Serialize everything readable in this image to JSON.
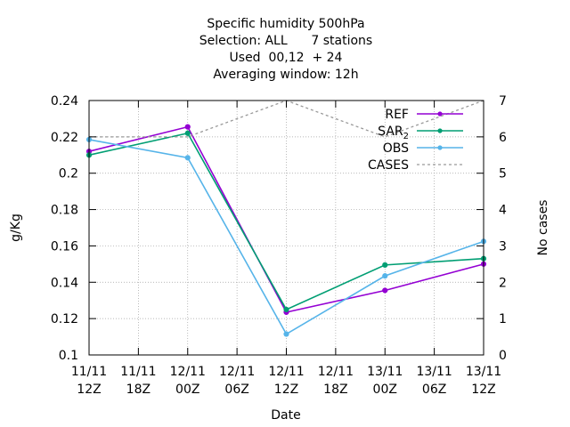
{
  "chart_data": {
    "type": "line",
    "title_lines": [
      "Specific humidity 500hPa",
      "Selection: ALL      7 stations",
      "Used  00,12  + 24",
      "Averaging window: 12h"
    ],
    "xlabel": "Date",
    "ylabel": "g/Kg",
    "y2label": "No cases",
    "x_ticks": [
      {
        "line1": "11/11",
        "line2": "12Z"
      },
      {
        "line1": "11/11",
        "line2": "18Z"
      },
      {
        "line1": "12/11",
        "line2": "00Z"
      },
      {
        "line1": "12/11",
        "line2": "06Z"
      },
      {
        "line1": "12/11",
        "line2": "12Z"
      },
      {
        "line1": "12/11",
        "line2": "18Z"
      },
      {
        "line1": "13/11",
        "line2": "00Z"
      },
      {
        "line1": "13/11",
        "line2": "06Z"
      },
      {
        "line1": "13/11",
        "line2": "12Z"
      }
    ],
    "ylim": [
      0.1,
      0.24
    ],
    "y_ticks": [
      "0.1",
      "0.12",
      "0.14",
      "0.16",
      "0.18",
      "0.2",
      "0.22",
      "0.24"
    ],
    "y2lim": [
      0,
      7
    ],
    "y2_ticks": [
      "0",
      "1",
      "2",
      "3",
      "4",
      "5",
      "6",
      "7"
    ],
    "grid": true,
    "legend_position": "top-right",
    "series": [
      {
        "name": "REF",
        "color": "#9400d3",
        "axis": "y",
        "dash": false,
        "markers": true,
        "x_index": [
          0,
          2,
          4,
          6,
          8
        ],
        "values": [
          0.212,
          0.2255,
          0.1235,
          0.1355,
          0.15
        ]
      },
      {
        "name": "SAR",
        "name_sub": "2",
        "color": "#009e73",
        "axis": "y",
        "dash": false,
        "markers": true,
        "x_index": [
          0,
          2,
          4,
          6,
          8
        ],
        "values": [
          0.21,
          0.222,
          0.125,
          0.1495,
          0.153
        ]
      },
      {
        "name": "OBS",
        "color": "#56b4e9",
        "axis": "y",
        "dash": false,
        "markers": true,
        "x_index": [
          0,
          2,
          4,
          6,
          8
        ],
        "values": [
          0.2185,
          0.2085,
          0.1115,
          0.1435,
          0.1625
        ]
      },
      {
        "name": "CASES",
        "color": "#999999",
        "axis": "y2",
        "dash": true,
        "markers": false,
        "x_index": [
          0,
          2,
          4,
          6,
          8
        ],
        "values": [
          6,
          6,
          7,
          6,
          7
        ]
      }
    ]
  }
}
